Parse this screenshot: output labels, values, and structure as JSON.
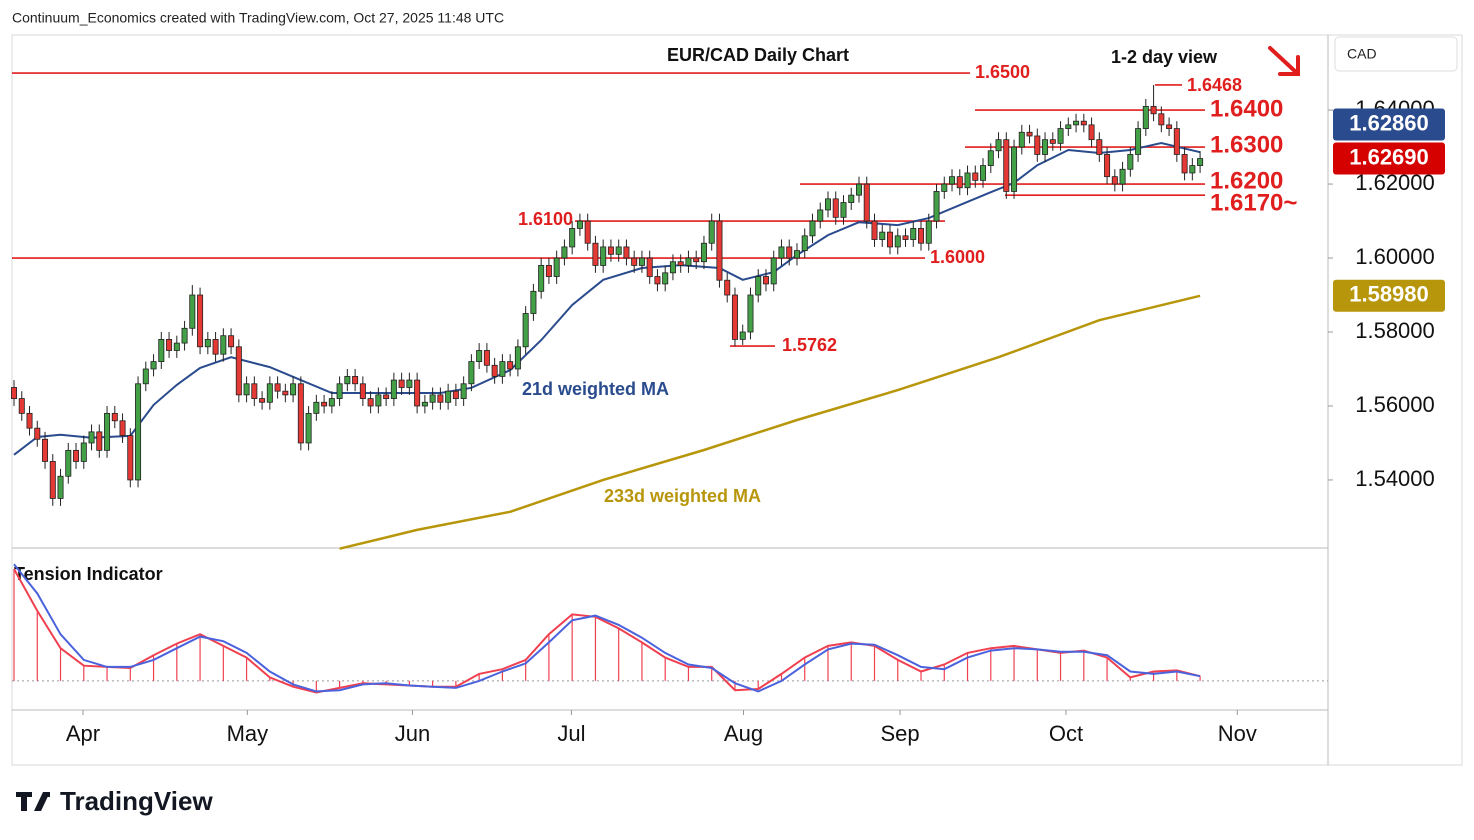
{
  "header": "Continuum_Economics created with TradingView.com, Oct 27, 2025 11:48 UTC",
  "logo": "TradingView",
  "currency": "CAD",
  "chart_data": {
    "type": "candlestick",
    "title": "EUR/CAD Daily Chart",
    "subtitle": "1-2 day view",
    "xlim": [
      -0.26,
      169.5
    ],
    "xticks": [
      {
        "value": 8.9,
        "label": "Apr"
      },
      {
        "value": 30.1,
        "label": "May"
      },
      {
        "value": 51.4,
        "label": "Jun"
      },
      {
        "value": 71.9,
        "label": "Jul"
      },
      {
        "value": 94.1,
        "label": "Aug"
      },
      {
        "value": 114.3,
        "label": "Sep"
      },
      {
        "value": 135.7,
        "label": "Oct"
      },
      {
        "value": 157.8,
        "label": "Nov"
      }
    ],
    "ylim": [
      1.5216,
      1.6603
    ],
    "yticks": [
      {
        "value": 1.54,
        "label": "1.54000"
      },
      {
        "value": 1.56,
        "label": "1.56000"
      },
      {
        "value": 1.58,
        "label": "1.58000"
      },
      {
        "value": 1.6,
        "label": "1.60000"
      },
      {
        "value": 1.62,
        "label": "1.62000"
      },
      {
        "value": 1.64,
        "label": "1.64000"
      }
    ],
    "up_color": "#43a047",
    "down_color": "#e53935",
    "open": [
      1.565,
      1.562,
      1.558,
      1.554,
      1.551,
      1.545,
      1.535,
      1.541,
      1.548,
      1.545,
      1.55,
      1.553,
      1.548,
      1.558,
      1.556,
      1.552,
      1.54,
      1.566,
      1.57,
      1.572,
      1.578,
      1.575,
      1.577,
      1.581,
      1.59,
      1.576,
      1.578,
      1.574,
      1.579,
      1.576,
      1.563,
      1.566,
      1.562,
      1.561,
      1.566,
      1.564,
      1.563,
      1.566,
      1.55,
      1.558,
      1.561,
      1.56,
      1.562,
      1.566,
      1.568,
      1.566,
      1.562,
      1.56,
      1.563,
      1.562,
      1.567,
      1.565,
      1.567,
      1.56,
      1.561,
      1.563,
      1.561,
      1.564,
      1.562,
      1.566,
      1.572,
      1.575,
      1.571,
      1.568,
      1.572,
      1.57,
      1.576,
      1.585,
      1.591,
      1.598,
      1.595,
      1.6,
      1.603,
      1.608,
      1.61,
      1.604,
      1.598,
      1.603,
      1.601,
      1.603,
      1.6,
      1.598,
      1.6,
      1.595,
      1.593,
      1.596,
      1.599,
      1.598,
      1.6,
      1.599,
      1.604,
      1.61,
      1.594,
      1.59,
      1.578,
      1.58,
      1.59,
      1.595,
      1.593,
      1.6,
      1.603,
      1.6,
      1.602,
      1.606,
      1.61,
      1.613,
      1.616,
      1.611,
      1.615,
      1.617,
      1.62,
      1.61,
      1.605,
      1.607,
      1.603,
      1.606,
      1.605,
      1.608,
      1.604,
      1.61,
      1.618,
      1.62,
      1.622,
      1.619,
      1.623,
      1.621,
      1.625,
      1.629,
      1.632,
      1.618,
      1.63,
      1.634,
      1.633,
      1.628,
      1.632,
      1.631,
      1.635,
      1.636,
      1.637,
      1.636,
      1.632,
      1.628,
      1.622,
      1.62,
      1.624,
      1.628,
      1.635,
      1.641,
      1.639,
      1.636,
      1.635,
      1.628,
      1.623,
      1.625
    ],
    "high": [
      1.567,
      1.564,
      1.56,
      1.556,
      1.553,
      1.547,
      1.543,
      1.55,
      1.55,
      1.552,
      1.555,
      1.555,
      1.56,
      1.56,
      1.558,
      1.554,
      1.568,
      1.572,
      1.574,
      1.58,
      1.58,
      1.579,
      1.583,
      1.5927,
      1.592,
      1.58,
      1.58,
      1.581,
      1.581,
      1.578,
      1.568,
      1.568,
      1.564,
      1.568,
      1.568,
      1.566,
      1.568,
      1.568,
      1.56,
      1.563,
      1.563,
      1.564,
      1.568,
      1.57,
      1.57,
      1.568,
      1.564,
      1.565,
      1.565,
      1.569,
      1.569,
      1.569,
      1.569,
      1.563,
      1.565,
      1.565,
      1.566,
      1.566,
      1.568,
      1.574,
      1.577,
      1.577,
      1.573,
      1.574,
      1.574,
      1.578,
      1.587,
      1.593,
      1.6,
      1.6,
      1.602,
      1.605,
      1.61,
      1.612,
      1.612,
      1.606,
      1.605,
      1.605,
      1.605,
      1.605,
      1.602,
      1.602,
      1.602,
      1.597,
      1.598,
      1.601,
      1.601,
      1.602,
      1.602,
      1.606,
      1.612,
      1.612,
      1.596,
      1.592,
      1.582,
      1.592,
      1.597,
      1.597,
      1.602,
      1.605,
      1.605,
      1.604,
      1.608,
      1.612,
      1.615,
      1.618,
      1.618,
      1.617,
      1.619,
      1.622,
      1.622,
      1.612,
      1.609,
      1.609,
      1.608,
      1.608,
      1.61,
      1.61,
      1.612,
      1.62,
      1.622,
      1.624,
      1.624,
      1.625,
      1.625,
      1.627,
      1.631,
      1.634,
      1.634,
      1.632,
      1.636,
      1.636,
      1.635,
      1.634,
      1.634,
      1.637,
      1.638,
      1.639,
      1.639,
      1.638,
      1.634,
      1.63,
      1.624,
      1.626,
      1.63,
      1.637,
      1.643,
      1.6468,
      1.641,
      1.638,
      1.637,
      1.63,
      1.627,
      1.6289
    ],
    "low": [
      1.56,
      1.556,
      1.552,
      1.549,
      1.543,
      1.533,
      1.533,
      1.539,
      1.543,
      1.543,
      1.548,
      1.546,
      1.546,
      1.554,
      1.55,
      1.538,
      1.538,
      1.564,
      1.568,
      1.57,
      1.573,
      1.573,
      1.575,
      1.579,
      1.574,
      1.574,
      1.572,
      1.572,
      1.574,
      1.561,
      1.561,
      1.56,
      1.559,
      1.559,
      1.562,
      1.561,
      1.561,
      1.548,
      1.548,
      1.556,
      1.558,
      1.558,
      1.56,
      1.564,
      1.564,
      1.56,
      1.558,
      1.558,
      1.56,
      1.56,
      1.563,
      1.563,
      1.558,
      1.558,
      1.559,
      1.559,
      1.559,
      1.56,
      1.56,
      1.564,
      1.57,
      1.569,
      1.566,
      1.566,
      1.568,
      1.568,
      1.574,
      1.583,
      1.589,
      1.593,
      1.593,
      1.598,
      1.601,
      1.606,
      1.602,
      1.596,
      1.596,
      1.599,
      1.599,
      1.598,
      1.596,
      1.596,
      1.593,
      1.591,
      1.591,
      1.594,
      1.596,
      1.596,
      1.597,
      1.597,
      1.602,
      1.592,
      1.588,
      1.5762,
      1.5765,
      1.578,
      1.588,
      1.591,
      1.591,
      1.598,
      1.598,
      1.598,
      1.6,
      1.604,
      1.608,
      1.611,
      1.609,
      1.609,
      1.613,
      1.615,
      1.608,
      1.603,
      1.603,
      1.601,
      1.601,
      1.603,
      1.603,
      1.602,
      1.602,
      1.608,
      1.616,
      1.618,
      1.617,
      1.617,
      1.619,
      1.619,
      1.623,
      1.627,
      1.616,
      1.616,
      1.628,
      1.631,
      1.626,
      1.626,
      1.629,
      1.629,
      1.633,
      1.634,
      1.634,
      1.63,
      1.626,
      1.62,
      1.618,
      1.618,
      1.622,
      1.626,
      1.633,
      1.637,
      1.634,
      1.633,
      1.626,
      1.621,
      1.621,
      1.623
    ],
    "close": [
      1.562,
      1.558,
      1.554,
      1.551,
      1.545,
      1.535,
      1.541,
      1.548,
      1.545,
      1.55,
      1.553,
      1.548,
      1.558,
      1.556,
      1.552,
      1.54,
      1.566,
      1.57,
      1.572,
      1.578,
      1.575,
      1.577,
      1.581,
      1.59,
      1.576,
      1.578,
      1.574,
      1.579,
      1.576,
      1.563,
      1.566,
      1.562,
      1.561,
      1.566,
      1.564,
      1.563,
      1.566,
      1.55,
      1.558,
      1.561,
      1.56,
      1.562,
      1.566,
      1.568,
      1.566,
      1.562,
      1.56,
      1.563,
      1.562,
      1.567,
      1.565,
      1.567,
      1.56,
      1.561,
      1.563,
      1.561,
      1.564,
      1.562,
      1.566,
      1.572,
      1.575,
      1.571,
      1.568,
      1.572,
      1.57,
      1.576,
      1.585,
      1.591,
      1.598,
      1.595,
      1.6,
      1.603,
      1.608,
      1.61,
      1.604,
      1.598,
      1.603,
      1.601,
      1.603,
      1.6,
      1.598,
      1.6,
      1.595,
      1.593,
      1.596,
      1.599,
      1.598,
      1.6,
      1.599,
      1.604,
      1.61,
      1.594,
      1.59,
      1.578,
      1.58,
      1.59,
      1.595,
      1.593,
      1.6,
      1.603,
      1.6,
      1.602,
      1.606,
      1.61,
      1.613,
      1.616,
      1.611,
      1.615,
      1.617,
      1.62,
      1.61,
      1.605,
      1.607,
      1.603,
      1.606,
      1.605,
      1.608,
      1.604,
      1.61,
      1.618,
      1.62,
      1.622,
      1.619,
      1.623,
      1.621,
      1.625,
      1.629,
      1.632,
      1.618,
      1.63,
      1.634,
      1.633,
      1.628,
      1.632,
      1.631,
      1.635,
      1.636,
      1.637,
      1.636,
      1.632,
      1.628,
      1.622,
      1.62,
      1.624,
      1.628,
      1.635,
      1.641,
      1.639,
      1.636,
      1.635,
      1.628,
      1.623,
      1.625,
      1.6269
    ],
    "close_label": "1.62690",
    "moving_averages": [
      {
        "name": "21d weighted MA",
        "color": "#2a4b8d",
        "last_label": "1.62860",
        "x": [
          0,
          3,
          6,
          10,
          15,
          18,
          21,
          24,
          28,
          33,
          37,
          41,
          45,
          50,
          55,
          59,
          64,
          68,
          72,
          76,
          81,
          86,
          91,
          94,
          98,
          101,
          105,
          109,
          114,
          118,
          122,
          126,
          129,
          132,
          136,
          140,
          144,
          148,
          153
        ],
        "values": [
          1.5468,
          1.5516,
          1.5522,
          1.5514,
          1.5519,
          1.5603,
          1.5657,
          1.5703,
          1.5732,
          1.5705,
          1.567,
          1.5635,
          1.5635,
          1.5635,
          1.5635,
          1.5649,
          1.5697,
          1.5778,
          1.5873,
          1.5941,
          1.5973,
          1.5981,
          1.5973,
          1.5941,
          1.5962,
          1.6008,
          1.6062,
          1.6097,
          1.6089,
          1.6108,
          1.6143,
          1.6178,
          1.6203,
          1.6251,
          1.6292,
          1.6284,
          1.6292,
          1.6311,
          1.6286
        ]
      },
      {
        "name": "233d weighted MA",
        "color": "#b8960c",
        "last_label": "1.58980",
        "x": [
          42,
          52,
          64,
          76,
          89,
          101,
          114,
          127,
          140,
          153
        ],
        "values": [
          1.5214,
          1.5265,
          1.5314,
          1.54,
          1.5481,
          1.5562,
          1.5643,
          1.5732,
          1.5832,
          1.5898
        ]
      }
    ],
    "levels": [
      {
        "value": 1.65,
        "label": "1.6500"
      },
      {
        "value": 1.6468,
        "label": "1.6468"
      },
      {
        "value": 1.64,
        "label": "1.6400"
      },
      {
        "value": 1.63,
        "label": "1.6300"
      },
      {
        "value": 1.62,
        "label": "1.6200"
      },
      {
        "value": 1.617,
        "label": "1.6170~"
      },
      {
        "value": 1.61,
        "label": "1.6100"
      },
      {
        "value": 1.6,
        "label": "1.6000"
      },
      {
        "value": 1.5762,
        "label": "1.5762"
      }
    ],
    "level_color": "#e01e1e",
    "tension": {
      "title": "Tension Indicator",
      "ylim": [
        -25,
        108
      ],
      "color": "#f04050",
      "signal_color": "#4a63dd",
      "x": [
        0,
        3,
        6,
        9,
        12,
        15,
        18,
        21,
        24,
        27,
        30,
        33,
        36,
        39,
        42,
        45,
        48,
        51,
        54,
        57,
        60,
        63,
        66,
        69,
        72,
        75,
        78,
        81,
        84,
        87,
        90,
        93,
        96,
        99,
        102,
        105,
        108,
        111,
        114,
        117,
        120,
        123,
        126,
        129,
        132,
        135,
        138,
        141,
        144,
        147,
        150,
        153
      ],
      "values": [
        96,
        60,
        28,
        13,
        12,
        11,
        22,
        32,
        40,
        30,
        20,
        3,
        -5,
        -10,
        -6,
        -2,
        -3,
        -4,
        -5,
        -5,
        6,
        10,
        18,
        40,
        57,
        55,
        45,
        33,
        20,
        12,
        12,
        -8,
        -7,
        6,
        20,
        30,
        33,
        30,
        18,
        8,
        14,
        24,
        28,
        30,
        27,
        24,
        26,
        20,
        3,
        8,
        9,
        4
      ],
      "signal": [
        100,
        75,
        40,
        18,
        12,
        12,
        18,
        28,
        38,
        34,
        24,
        8,
        -3,
        -9,
        -8,
        -3,
        -2,
        -4,
        -5,
        -6,
        0,
        8,
        15,
        33,
        52,
        56,
        48,
        37,
        24,
        14,
        11,
        -2,
        -9,
        0,
        14,
        27,
        32,
        31,
        22,
        12,
        10,
        20,
        26,
        28,
        27,
        25,
        25,
        22,
        8,
        6,
        8,
        4
      ]
    }
  }
}
